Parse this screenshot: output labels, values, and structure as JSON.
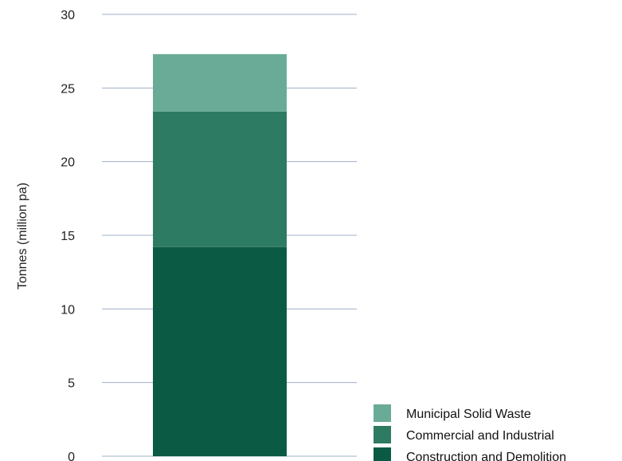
{
  "chart_data": {
    "type": "bar",
    "stacked": true,
    "categories": [
      ""
    ],
    "series": [
      {
        "name": "Construction and Demolition",
        "values": [
          14.2
        ],
        "color": "#0b5a44"
      },
      {
        "name": "Commercial and Industrial",
        "values": [
          9.2
        ],
        "color": "#2e7b63"
      },
      {
        "name": "Municipal Solid Waste",
        "values": [
          3.9
        ],
        "color": "#6aab98"
      }
    ],
    "title": "",
    "xlabel": "",
    "ylabel": "Tonnes (million pa)",
    "ylim": [
      0,
      30
    ],
    "yticks": [
      0,
      5,
      10,
      15,
      20,
      25,
      30
    ],
    "grid": true,
    "legend_order": [
      "Municipal Solid Waste",
      "Commercial and Industrial",
      "Construction and Demolition"
    ],
    "legend_position": "bottom-right"
  }
}
